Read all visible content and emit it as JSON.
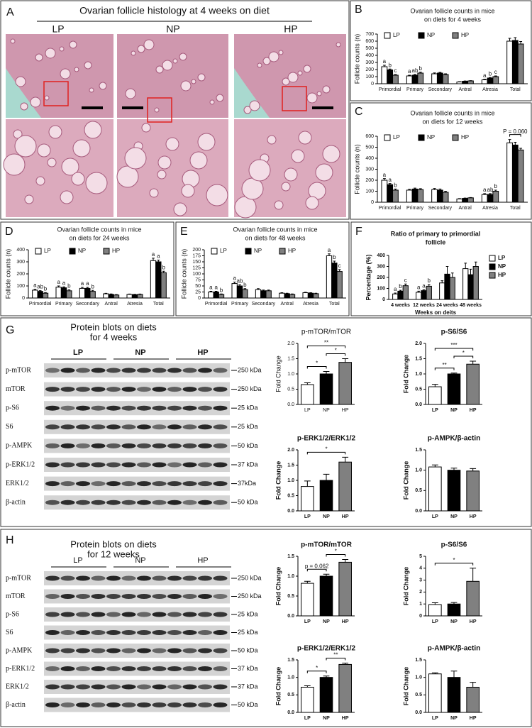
{
  "panel_letters": [
    "A",
    "B",
    "C",
    "D",
    "E",
    "F",
    "G",
    "H"
  ],
  "histology": {
    "title": "Ovarian follicle histology at 4 weeks on diet",
    "groups": [
      "LP",
      "NP",
      "HP"
    ]
  },
  "blots": [
    {
      "title": [
        "Protein blots on diets",
        "for 4 weeks"
      ],
      "groups": [
        "LP",
        "NP",
        "HP"
      ],
      "proteins": [
        "p-mTOR",
        "mTOR",
        "p-S6",
        "S6",
        "p-AMPK",
        "p-ERK1/2",
        "ERK1/2",
        "β-actin"
      ],
      "markers": [
        "250 kDa",
        "250 kDa",
        "25 kDa",
        "25 kDa",
        "50 kDa",
        "37 kDa",
        "37kDa",
        "50 kDa"
      ]
    },
    {
      "title": [
        "Protein blots on diets",
        "for 12 weeks"
      ],
      "groups": [
        "LP",
        "NP",
        "HP"
      ],
      "proteins": [
        "p-mTOR",
        "mTOR",
        "p-S6",
        "S6",
        "p-AMPK",
        "p-ERK1/2",
        "ERK1/2",
        "β-actin"
      ],
      "markers": [
        "250 kDa",
        "250 kDa",
        "25 kDa",
        "25 kDa",
        "50 kDa",
        "37 kDa",
        "37 kDa",
        "50 kDa"
      ]
    }
  ],
  "chart_data": [
    {
      "type": "bar",
      "title": [
        "Ovarian follicle counts in mice",
        "on diets for 4 weeks"
      ],
      "ylabel": "Follicle counts (n)",
      "categories": [
        "Primordial",
        "Primary",
        "Secondary",
        "Antral",
        "Atresia",
        "Total"
      ],
      "series": [
        {
          "name": "LP",
          "color": "#ffffff",
          "values": [
            240,
            110,
            140,
            25,
            55,
            600
          ],
          "errors": [
            20,
            10,
            12,
            4,
            8,
            40
          ],
          "letters": [
            "a",
            "a",
            null,
            null,
            "a",
            null
          ]
        },
        {
          "name": "NP",
          "color": "#000000",
          "values": [
            195,
            120,
            150,
            35,
            80,
            610
          ],
          "errors": [
            12,
            10,
            10,
            4,
            8,
            40
          ],
          "letters": [
            "b",
            "ab",
            null,
            null,
            "b",
            null
          ]
        },
        {
          "name": "HP",
          "color": "#808080",
          "values": [
            120,
            150,
            130,
            40,
            100,
            560
          ],
          "errors": [
            10,
            12,
            10,
            4,
            10,
            35
          ],
          "letters": [
            "c",
            "b",
            null,
            null,
            "c",
            null
          ]
        }
      ],
      "ylim": [
        0,
        700
      ],
      "yticks": [
        0,
        100,
        200,
        300,
        400,
        500,
        600,
        700
      ],
      "legend": "top-left"
    },
    {
      "type": "bar",
      "title": [
        "Ovarian follicle counts in mice",
        "on diets for 12 weeks"
      ],
      "ylabel": "Follicle counts (n)",
      "categories": [
        "Primordial",
        "Primary",
        "Secondary",
        "Antral",
        "Atresia",
        "Total"
      ],
      "series": [
        {
          "name": "LP",
          "color": "#ffffff",
          "values": [
            200,
            110,
            115,
            30,
            70,
            540
          ],
          "errors": [
            15,
            8,
            10,
            3,
            8,
            30
          ],
          "letters": [
            "a",
            null,
            null,
            null,
            "a",
            null
          ]
        },
        {
          "name": "NP",
          "color": "#000000",
          "values": [
            160,
            120,
            110,
            35,
            70,
            520
          ],
          "errors": [
            10,
            8,
            10,
            3,
            8,
            25
          ],
          "letters": [
            "a",
            null,
            null,
            null,
            "ab",
            null
          ]
        },
        {
          "name": "HP",
          "color": "#808080",
          "values": [
            110,
            115,
            90,
            40,
            100,
            475
          ],
          "errors": [
            10,
            8,
            10,
            3,
            10,
            15
          ],
          "letters": [
            "b",
            null,
            null,
            null,
            "b",
            null
          ]
        }
      ],
      "ylim": [
        0,
        600
      ],
      "yticks": [
        0,
        100,
        200,
        300,
        400,
        500,
        600
      ],
      "legend": "top-left",
      "annotations": [
        {
          "category": 5,
          "from": 0,
          "to": 2,
          "text": "P = 0.060"
        }
      ]
    },
    {
      "type": "bar",
      "title": [
        "Ovarian follicle counts in mice",
        "on diets for 24 weeks"
      ],
      "ylabel": "Follicle counts (n)",
      "categories": [
        "Primordial",
        "Primary",
        "Secondary",
        "Antral",
        "Atresia",
        "Total"
      ],
      "series": [
        {
          "name": "LP",
          "color": "#ffffff",
          "values": [
            65,
            90,
            80,
            35,
            30,
            310
          ],
          "errors": [
            8,
            10,
            8,
            4,
            3,
            20
          ],
          "letters": [
            "a",
            "a",
            "a",
            null,
            null,
            "a"
          ]
        },
        {
          "name": "NP",
          "color": "#000000",
          "values": [
            55,
            85,
            80,
            30,
            28,
            300
          ],
          "errors": [
            6,
            8,
            8,
            4,
            3,
            15
          ],
          "letters": [
            "ab",
            "a",
            "a",
            null,
            null,
            "a"
          ]
        },
        {
          "name": "HP",
          "color": "#808080",
          "values": [
            40,
            60,
            55,
            25,
            30,
            210
          ],
          "errors": [
            5,
            8,
            8,
            4,
            3,
            12
          ],
          "letters": [
            "b",
            "b",
            "b",
            null,
            null,
            "b"
          ]
        }
      ],
      "ylim": [
        0,
        400
      ],
      "yticks": [
        0,
        100,
        200,
        300,
        400
      ],
      "legend": "top-left"
    },
    {
      "type": "bar",
      "title": [
        "Ovarian follicle counts in mice",
        "on diets for 48 weeks"
      ],
      "ylabel": "Follicle counts (n)",
      "categories": [
        "Primordial",
        "Primary",
        "Secondary",
        "Antral",
        "Atresia",
        "Total"
      ],
      "series": [
        {
          "name": "LP",
          "color": "#ffffff",
          "values": [
            25,
            60,
            35,
            20,
            22,
            175
          ],
          "errors": [
            3,
            6,
            4,
            2,
            2,
            8
          ],
          "letters": [
            "a",
            "a",
            null,
            null,
            null,
            "a"
          ]
        },
        {
          "name": "NP",
          "color": "#000000",
          "values": [
            25,
            50,
            30,
            18,
            20,
            145
          ],
          "errors": [
            3,
            5,
            3,
            2,
            2,
            8
          ],
          "letters": [
            "a",
            "ab",
            null,
            null,
            null,
            "b"
          ]
        },
        {
          "name": "HP",
          "color": "#808080",
          "values": [
            15,
            35,
            30,
            15,
            18,
            110
          ],
          "errors": [
            2,
            4,
            3,
            2,
            2,
            8
          ],
          "letters": [
            "b",
            "b",
            null,
            null,
            null,
            "c"
          ]
        }
      ],
      "ylim": [
        0,
        200
      ],
      "yticks": [
        0,
        25,
        50,
        75,
        100,
        125,
        150,
        175,
        200
      ],
      "legend": "top-left"
    },
    {
      "type": "bar",
      "title": [
        "Ratio of primary to primordial",
        "follicle"
      ],
      "ylabel": "Percentage (%)",
      "xlabel": "Weeks on deits",
      "categories": [
        "4 weeks",
        "12 weeks",
        "24 weeks",
        "48 weeks"
      ],
      "series": [
        {
          "name": "LP",
          "color": "#ffffff",
          "values": [
            50,
            65,
            150,
            280
          ],
          "errors": [
            8,
            10,
            20,
            50
          ],
          "letters": [
            "a",
            "a",
            null,
            null
          ]
        },
        {
          "name": "NP",
          "color": "#000000",
          "values": [
            75,
            80,
            230,
            225
          ],
          "errors": [
            8,
            8,
            70,
            50
          ],
          "letters": [
            "b",
            "a",
            null,
            null
          ]
        },
        {
          "name": "HP",
          "color": "#808080",
          "values": [
            125,
            120,
            200,
            300
          ],
          "errors": [
            15,
            15,
            40,
            40
          ],
          "letters": [
            "c",
            "b",
            null,
            null
          ]
        }
      ],
      "ylim": [
        0,
        400
      ],
      "yticks": [
        0,
        100,
        200,
        300,
        400
      ],
      "legend": "right"
    },
    {
      "type": "bar",
      "title": [
        "p-mTOR/mTOR"
      ],
      "ylabel": "Fold Change",
      "categories": [
        "LP",
        "NP",
        "HP"
      ],
      "values": [
        0.65,
        1.0,
        1.38
      ],
      "errors": [
        0.06,
        0.08,
        0.12
      ],
      "colors": [
        "#ffffff",
        "#000000",
        "#808080"
      ],
      "ylim": [
        0,
        2.0
      ],
      "yticks": [
        {
          "value": 0,
          "label": "0.0"
        },
        0.5,
        {
          "value": 1,
          "label": "1.0"
        },
        1.5,
        {
          "value": 2,
          "label": "2.0"
        }
      ],
      "annotations": [
        {
          "from": 0,
          "to": 1,
          "text": "*"
        },
        {
          "from": 1,
          "to": 2,
          "text": "*"
        },
        {
          "from": 0,
          "to": 2,
          "text": "**"
        }
      ]
    },
    {
      "type": "bar",
      "title": [
        "p-S6/S6"
      ],
      "ylabel": "Fold Change",
      "categories": [
        "LP",
        "NP",
        "HP"
      ],
      "values": [
        0.58,
        1.0,
        1.32
      ],
      "errors": [
        0.08,
        0.03,
        0.1
      ],
      "colors": [
        "#ffffff",
        "#000000",
        "#808080"
      ],
      "ylim": [
        0,
        2.0
      ],
      "yticks": [
        {
          "value": 0,
          "label": "0.0"
        },
        0.5,
        {
          "value": 1,
          "label": "1.0"
        },
        1.5,
        {
          "value": 2,
          "label": "2.0"
        }
      ],
      "annotations": [
        {
          "from": 0,
          "to": 1,
          "text": "**"
        },
        {
          "from": 1,
          "to": 2,
          "text": "*"
        },
        {
          "from": 0,
          "to": 2,
          "text": "***"
        }
      ]
    },
    {
      "type": "bar",
      "title": [
        "p-ERK1/2/ERK1/2"
      ],
      "ylabel": "Fold Change",
      "categories": [
        "LP",
        "NP",
        "HP"
      ],
      "values": [
        0.8,
        1.0,
        1.6
      ],
      "errors": [
        0.18,
        0.2,
        0.16
      ],
      "colors": [
        "#ffffff",
        "#000000",
        "#808080"
      ],
      "ylim": [
        0,
        2.0
      ],
      "yticks": [
        {
          "value": 0,
          "label": "0.0"
        },
        0.5,
        {
          "value": 1,
          "label": "1.0"
        },
        1.5,
        {
          "value": 2,
          "label": "2.0"
        }
      ],
      "annotations": [
        {
          "from": 0,
          "to": 2,
          "text": "*"
        }
      ]
    },
    {
      "type": "bar",
      "title": [
        "p-AMPK/β-actin"
      ],
      "ylabel": "Fold Change",
      "categories": [
        "LP",
        "NP",
        "HP"
      ],
      "values": [
        1.08,
        1.0,
        0.98
      ],
      "errors": [
        0.05,
        0.05,
        0.06
      ],
      "colors": [
        "#ffffff",
        "#000000",
        "#808080"
      ],
      "ylim": [
        0,
        1.5
      ],
      "yticks": [
        {
          "value": 0,
          "label": "0.0"
        },
        0.5,
        {
          "value": 1,
          "label": "1.0"
        },
        1.5
      ]
    },
    {
      "type": "bar",
      "title": [
        "p-mTOR/mTOR"
      ],
      "ylabel": "Fold Change",
      "categories": [
        "LP",
        "NP",
        "HP"
      ],
      "values": [
        0.82,
        1.0,
        1.35
      ],
      "errors": [
        0.05,
        0.05,
        0.07
      ],
      "colors": [
        "#ffffff",
        "#000000",
        "#808080"
      ],
      "ylim": [
        0,
        1.5
      ],
      "yticks": [
        {
          "value": 0,
          "label": "0.0"
        },
        0.5,
        {
          "value": 1,
          "label": "1.0"
        },
        1.5
      ],
      "annotations": [
        {
          "from": 0,
          "to": 1,
          "text": "p = 0.062"
        },
        {
          "from": 1,
          "to": 2,
          "text": "*"
        }
      ]
    },
    {
      "type": "bar",
      "title": [
        "p-S6/S6"
      ],
      "ylabel": "Fold Change",
      "categories": [
        "LP",
        "NP",
        "HP"
      ],
      "values": [
        0.95,
        1.0,
        2.9
      ],
      "errors": [
        0.15,
        0.12,
        1.1
      ],
      "colors": [
        "#ffffff",
        "#000000",
        "#808080"
      ],
      "ylim": [
        0,
        5
      ],
      "yticks": [
        0,
        1,
        2,
        3,
        4,
        5
      ],
      "annotations": [
        {
          "from": 0,
          "to": 2,
          "text": "*"
        }
      ]
    },
    {
      "type": "bar",
      "title": [
        "p-ERK1/2/ERK1/2"
      ],
      "ylabel": "Fold Change",
      "categories": [
        "LP",
        "NP",
        "HP"
      ],
      "values": [
        0.72,
        1.0,
        1.37
      ],
      "errors": [
        0.04,
        0.04,
        0.04
      ],
      "colors": [
        "#ffffff",
        "#000000",
        "#808080"
      ],
      "ylim": [
        0,
        1.5
      ],
      "yticks": [
        {
          "value": 0,
          "label": "0.0"
        },
        0.5,
        {
          "value": 1,
          "label": "1.0"
        },
        1.5
      ],
      "annotations": [
        {
          "from": 0,
          "to": 1,
          "text": "*"
        },
        {
          "from": 1,
          "to": 2,
          "text": "**"
        }
      ]
    },
    {
      "type": "bar",
      "title": [
        "p-AMPK/β-actin"
      ],
      "ylabel": "Fold Change",
      "categories": [
        "LP",
        "NP",
        "HP"
      ],
      "values": [
        1.1,
        1.0,
        0.72
      ],
      "errors": [
        0.03,
        0.18,
        0.14
      ],
      "colors": [
        "#ffffff",
        "#000000",
        "#808080"
      ],
      "ylim": [
        0,
        1.5
      ],
      "yticks": [
        {
          "value": 0,
          "label": "0.0"
        },
        0.5,
        {
          "value": 1,
          "label": "1.0"
        },
        1.5
      ]
    }
  ]
}
